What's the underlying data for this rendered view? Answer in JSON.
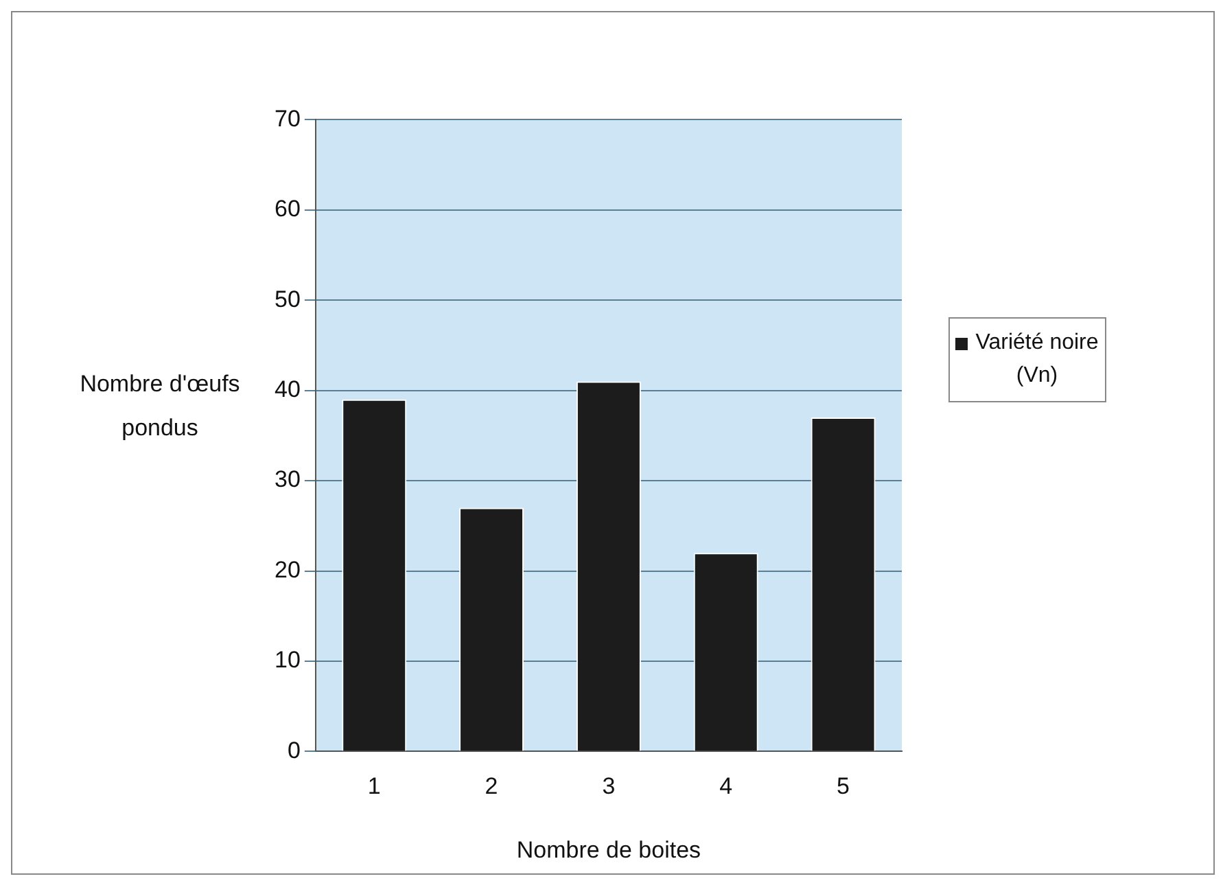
{
  "chart_data": {
    "type": "bar",
    "xlabel": "Nombre de boites",
    "ylabel": "Nombre d'œufs pondus",
    "categories": [
      "1",
      "2",
      "3",
      "4",
      "5"
    ],
    "series": [
      {
        "name": "Variété noire (Vn)",
        "color": "#1c1c1c",
        "values": [
          39,
          27,
          41,
          22,
          37
        ]
      }
    ],
    "ylim": [
      0,
      70
    ],
    "yticks": [
      0,
      10,
      20,
      30,
      40,
      50,
      60,
      70
    ],
    "grid": "y",
    "legend": "right"
  }
}
